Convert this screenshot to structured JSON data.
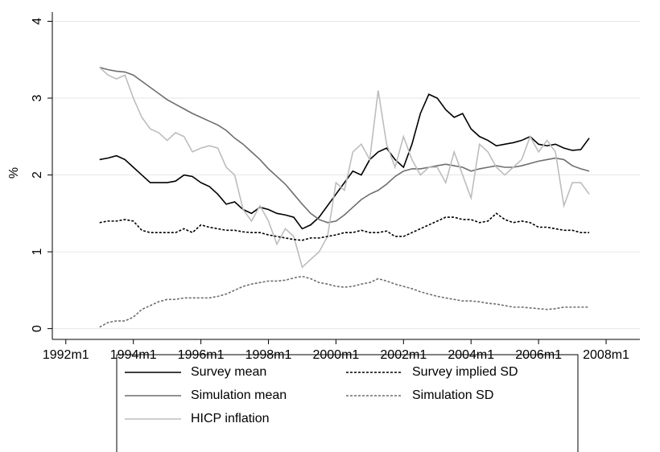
{
  "chart_data": {
    "type": "line",
    "y_label": "%",
    "x": [
      1993,
      1993.25,
      1993.5,
      1993.75,
      1994,
      1994.25,
      1994.5,
      1994.75,
      1995,
      1995.25,
      1995.5,
      1995.75,
      1996,
      1996.25,
      1996.5,
      1996.75,
      1997,
      1997.25,
      1997.5,
      1997.75,
      1998,
      1998.25,
      1998.5,
      1998.75,
      1999,
      1999.25,
      1999.5,
      1999.75,
      2000,
      2000.25,
      2000.5,
      2000.75,
      2001,
      2001.25,
      2001.5,
      2001.75,
      2002,
      2002.25,
      2002.5,
      2002.75,
      2003,
      2003.25,
      2003.5,
      2003.75,
      2004,
      2004.25,
      2004.5,
      2004.75,
      2005,
      2005.25,
      2005.5,
      2005.75,
      2006,
      2006.25,
      2006.5,
      2006.75,
      2007,
      2007.25,
      2007.5
    ],
    "series": [
      {
        "name": "Survey mean",
        "color": "#000000",
        "dash": "solid",
        "values": [
          2.2,
          2.22,
          2.25,
          2.2,
          2.1,
          2.0,
          1.9,
          1.9,
          1.9,
          1.92,
          2.0,
          1.98,
          1.9,
          1.85,
          1.75,
          1.62,
          1.65,
          1.55,
          1.5,
          1.58,
          1.55,
          1.5,
          1.48,
          1.45,
          1.3,
          1.35,
          1.45,
          1.6,
          1.75,
          1.9,
          2.05,
          2.0,
          2.2,
          2.3,
          2.35,
          2.2,
          2.1,
          2.4,
          2.8,
          3.05,
          3.0,
          2.85,
          2.75,
          2.8,
          2.6,
          2.5,
          2.45,
          2.38,
          2.4,
          2.42,
          2.45,
          2.5,
          2.4,
          2.38,
          2.4,
          2.35,
          2.32,
          2.33,
          2.48
        ]
      },
      {
        "name": "Simulation mean",
        "color": "#6e6e6e",
        "dash": "solid",
        "values": [
          3.4,
          3.37,
          3.35,
          3.34,
          3.3,
          3.22,
          3.14,
          3.06,
          2.98,
          2.92,
          2.86,
          2.8,
          2.75,
          2.7,
          2.65,
          2.58,
          2.48,
          2.4,
          2.3,
          2.2,
          2.08,
          1.98,
          1.88,
          1.75,
          1.62,
          1.5,
          1.42,
          1.38,
          1.4,
          1.48,
          1.58,
          1.68,
          1.75,
          1.8,
          1.88,
          1.98,
          2.05,
          2.08,
          2.08,
          2.1,
          2.12,
          2.14,
          2.12,
          2.1,
          2.05,
          2.08,
          2.1,
          2.12,
          2.1,
          2.1,
          2.12,
          2.15,
          2.18,
          2.2,
          2.22,
          2.2,
          2.12,
          2.08,
          2.05
        ]
      },
      {
        "name": "HICP inflation",
        "color": "#bdbdbd",
        "dash": "solid",
        "values": [
          3.4,
          3.3,
          3.25,
          3.3,
          3.0,
          2.75,
          2.6,
          2.55,
          2.45,
          2.55,
          2.5,
          2.3,
          2.35,
          2.38,
          2.35,
          2.1,
          2.0,
          1.55,
          1.4,
          1.6,
          1.4,
          1.1,
          1.3,
          1.2,
          0.8,
          0.9,
          1.0,
          1.2,
          1.9,
          1.8,
          2.3,
          2.4,
          2.2,
          3.1,
          2.4,
          2.1,
          2.5,
          2.2,
          2.0,
          2.1,
          2.1,
          1.9,
          2.3,
          2.0,
          1.7,
          2.4,
          2.3,
          2.1,
          2.0,
          2.1,
          2.2,
          2.5,
          2.3,
          2.45,
          2.3,
          1.6,
          1.9,
          1.9,
          1.75
        ]
      },
      {
        "name": "Survey implied SD",
        "color": "#000000",
        "dash": "dotted",
        "values": [
          1.38,
          1.4,
          1.4,
          1.42,
          1.4,
          1.28,
          1.25,
          1.25,
          1.25,
          1.25,
          1.3,
          1.25,
          1.35,
          1.32,
          1.3,
          1.28,
          1.28,
          1.26,
          1.25,
          1.25,
          1.22,
          1.2,
          1.18,
          1.16,
          1.15,
          1.18,
          1.18,
          1.2,
          1.22,
          1.25,
          1.25,
          1.28,
          1.25,
          1.25,
          1.27,
          1.2,
          1.2,
          1.25,
          1.3,
          1.35,
          1.4,
          1.45,
          1.45,
          1.42,
          1.42,
          1.38,
          1.4,
          1.5,
          1.42,
          1.38,
          1.4,
          1.38,
          1.32,
          1.32,
          1.3,
          1.28,
          1.28,
          1.25,
          1.25
        ]
      },
      {
        "name": "Simulation SD",
        "color": "#6e6e6e",
        "dash": "dotted",
        "values": [
          0.02,
          0.08,
          0.1,
          0.1,
          0.15,
          0.25,
          0.3,
          0.35,
          0.38,
          0.38,
          0.4,
          0.4,
          0.4,
          0.4,
          0.42,
          0.45,
          0.5,
          0.55,
          0.58,
          0.6,
          0.62,
          0.62,
          0.63,
          0.66,
          0.68,
          0.65,
          0.6,
          0.58,
          0.55,
          0.54,
          0.55,
          0.58,
          0.6,
          0.65,
          0.62,
          0.58,
          0.55,
          0.52,
          0.48,
          0.45,
          0.42,
          0.4,
          0.38,
          0.36,
          0.36,
          0.35,
          0.33,
          0.32,
          0.3,
          0.28,
          0.28,
          0.27,
          0.26,
          0.25,
          0.26,
          0.28,
          0.28,
          0.28,
          0.28
        ]
      }
    ],
    "xlim": [
      1991.6,
      2009
    ],
    "xticks": [
      {
        "value": 1992,
        "label": "1992m1"
      },
      {
        "value": 1994,
        "label": "1994m1"
      },
      {
        "value": 1996,
        "label": "1996m1"
      },
      {
        "value": 1998,
        "label": "1998m1"
      },
      {
        "value": 2000,
        "label": "2000m1"
      },
      {
        "value": 2002,
        "label": "2002m1"
      },
      {
        "value": 2004,
        "label": "2004m1"
      },
      {
        "value": 2006,
        "label": "2006m1"
      },
      {
        "value": 2008,
        "label": "2008m1"
      }
    ],
    "ylim": [
      -0.14,
      4.12
    ],
    "yticks": [
      0,
      1,
      2,
      3,
      4
    ],
    "grid": true,
    "legend": "bottom"
  }
}
